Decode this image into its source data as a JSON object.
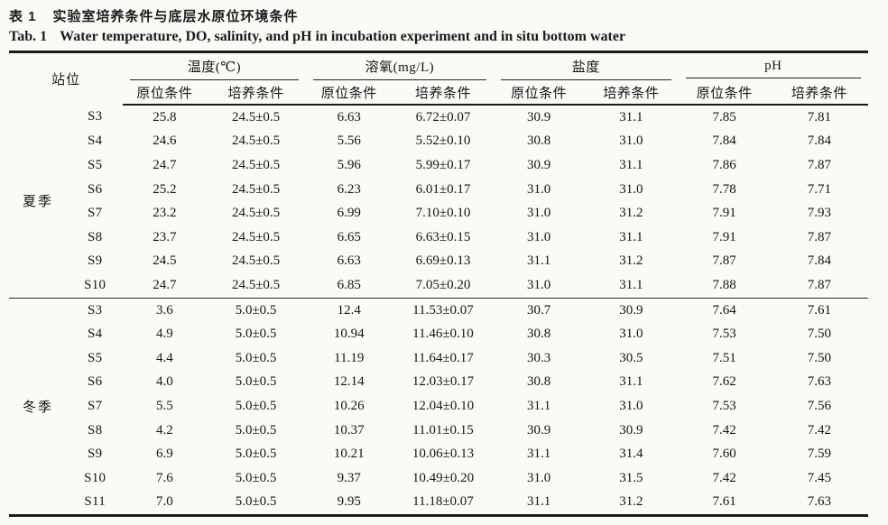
{
  "caption": {
    "zh_label": "表 1",
    "zh_title": "实验室培养条件与底层水原位环境条件",
    "en_label": "Tab. 1",
    "en_title": "Water temperature, DO, salinity, and pH in incubation experiment and in situ bottom water"
  },
  "chart_data": {
    "type": "table",
    "title": "实验室培养条件与底层水原位环境条件 / Water temperature, DO, salinity, and pH in incubation experiment and in situ bottom water",
    "column_groups": [
      "温度(℃)",
      "溶氧(mg/L)",
      "盐度",
      "pH"
    ],
    "sub_columns": [
      "原位条件",
      "培养条件"
    ],
    "row_key": "站位",
    "sections": [
      {
        "season": "夏季",
        "stations": [
          "S3",
          "S4",
          "S5",
          "S6",
          "S7",
          "S8",
          "S9",
          "S10"
        ]
      },
      {
        "season": "冬季",
        "stations": [
          "S3",
          "S4",
          "S5",
          "S6",
          "S7",
          "S8",
          "S9",
          "S10",
          "S11"
        ]
      }
    ]
  },
  "table": {
    "station_header": "站位",
    "groups": [
      {
        "label": "温度(℃)"
      },
      {
        "label": "溶氧(mg/L)"
      },
      {
        "label": "盐度"
      },
      {
        "label": "pH"
      }
    ],
    "sub_headers": [
      "原位条件",
      "培养条件"
    ],
    "sections": [
      {
        "season": "夏季",
        "rows": [
          {
            "station": "S3",
            "values": [
              "25.8",
              "24.5±0.5",
              "6.63",
              "6.72±0.07",
              "30.9",
              "31.1",
              "7.85",
              "7.81"
            ]
          },
          {
            "station": "S4",
            "values": [
              "24.6",
              "24.5±0.5",
              "5.56",
              "5.52±0.10",
              "30.8",
              "31.0",
              "7.84",
              "7.84"
            ]
          },
          {
            "station": "S5",
            "values": [
              "24.7",
              "24.5±0.5",
              "5.96",
              "5.99±0.17",
              "30.9",
              "31.1",
              "7.86",
              "7.87"
            ]
          },
          {
            "station": "S6",
            "values": [
              "25.2",
              "24.5±0.5",
              "6.23",
              "6.01±0.17",
              "31.0",
              "31.0",
              "7.78",
              "7.71"
            ]
          },
          {
            "station": "S7",
            "values": [
              "23.2",
              "24.5±0.5",
              "6.99",
              "7.10±0.10",
              "31.0",
              "31.2",
              "7.91",
              "7.93"
            ]
          },
          {
            "station": "S8",
            "values": [
              "23.7",
              "24.5±0.5",
              "6.65",
              "6.63±0.15",
              "31.0",
              "31.1",
              "7.91",
              "7.87"
            ]
          },
          {
            "station": "S9",
            "values": [
              "24.5",
              "24.5±0.5",
              "6.63",
              "6.69±0.13",
              "31.1",
              "31.2",
              "7.87",
              "7.84"
            ]
          },
          {
            "station": "S10",
            "values": [
              "24.7",
              "24.5±0.5",
              "6.85",
              "7.05±0.20",
              "31.0",
              "31.1",
              "7.88",
              "7.87"
            ]
          }
        ]
      },
      {
        "season": "冬季",
        "rows": [
          {
            "station": "S3",
            "values": [
              "3.6",
              "5.0±0.5",
              "12.4",
              "11.53±0.07",
              "30.7",
              "30.9",
              "7.64",
              "7.61"
            ]
          },
          {
            "station": "S4",
            "values": [
              "4.9",
              "5.0±0.5",
              "10.94",
              "11.46±0.10",
              "30.8",
              "31.0",
              "7.53",
              "7.50"
            ]
          },
          {
            "station": "S5",
            "values": [
              "4.4",
              "5.0±0.5",
              "11.19",
              "11.64±0.17",
              "30.3",
              "30.5",
              "7.51",
              "7.50"
            ]
          },
          {
            "station": "S6",
            "values": [
              "4.0",
              "5.0±0.5",
              "12.14",
              "12.03±0.17",
              "30.8",
              "31.1",
              "7.62",
              "7.63"
            ]
          },
          {
            "station": "S7",
            "values": [
              "5.5",
              "5.0±0.5",
              "10.26",
              "12.04±0.10",
              "31.1",
              "31.0",
              "7.53",
              "7.56"
            ]
          },
          {
            "station": "S8",
            "values": [
              "4.2",
              "5.0±0.5",
              "10.37",
              "11.01±0.15",
              "30.9",
              "30.9",
              "7.42",
              "7.42"
            ]
          },
          {
            "station": "S9",
            "values": [
              "6.9",
              "5.0±0.5",
              "10.21",
              "10.06±0.13",
              "31.1",
              "31.4",
              "7.60",
              "7.59"
            ]
          },
          {
            "station": "S10",
            "values": [
              "7.6",
              "5.0±0.5",
              "9.37",
              "10.49±0.20",
              "31.0",
              "31.5",
              "7.42",
              "7.45"
            ]
          },
          {
            "station": "S11",
            "values": [
              "7.0",
              "5.0±0.5",
              "9.95",
              "11.18±0.07",
              "31.1",
              "31.2",
              "7.61",
              "7.63"
            ]
          }
        ]
      }
    ]
  }
}
